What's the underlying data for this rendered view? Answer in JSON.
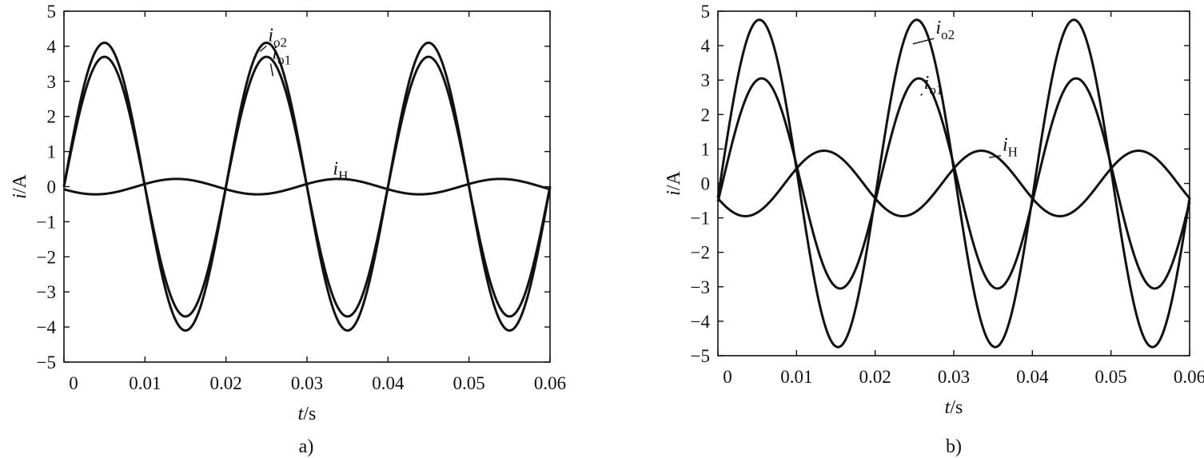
{
  "chart_data": [
    {
      "type": "line",
      "panel_label": "a)",
      "xlabel": {
        "var": "t",
        "unit": "/s"
      },
      "ylabel": {
        "var": "i",
        "unit": "/A"
      },
      "xlim": [
        0,
        0.06
      ],
      "ylim": [
        -5,
        5
      ],
      "xticks": [
        0,
        0.01,
        0.02,
        0.03,
        0.04,
        0.05,
        0.06
      ],
      "xtick_labels": [
        "0",
        "0.01",
        "0.02",
        "0.03",
        "0.04",
        "0.05",
        "0.06"
      ],
      "yticks": [
        5,
        4,
        3,
        2,
        1,
        0,
        -1,
        -2,
        -3,
        -4,
        -5
      ],
      "ytick_labels": [
        "5",
        "4",
        "3",
        "2",
        "1",
        "0",
        "−1",
        "−2",
        "−3",
        "−4",
        "−5"
      ],
      "series": [
        {
          "name": {
            "main": "i",
            "sub": "o2"
          },
          "amplitude": 4.1,
          "frequency_hz": 50,
          "phase_deg": 0,
          "label_at": [
            0.025,
            4.1
          ]
        },
        {
          "name": {
            "main": "i",
            "sub": "o1"
          },
          "amplitude": 3.7,
          "frequency_hz": 50,
          "phase_deg": 0,
          "label_at": [
            0.0255,
            3.6
          ]
        },
        {
          "name": {
            "main": "i",
            "sub": "H"
          },
          "amplitude": 0.22,
          "frequency_hz": 50,
          "phase_deg": 200,
          "label_at": [
            0.033,
            0.3
          ]
        }
      ]
    },
    {
      "type": "line",
      "panel_label": "b)",
      "xlabel": {
        "var": "t",
        "unit": "/s"
      },
      "ylabel": {
        "var": "i",
        "unit": "/A"
      },
      "xlim": [
        0,
        0.06
      ],
      "ylim": [
        -5,
        5
      ],
      "xticks": [
        0,
        0.01,
        0.02,
        0.03,
        0.04,
        0.05,
        0.06
      ],
      "xtick_labels": [
        "0",
        "0.01",
        "0.02",
        "0.03",
        "0.04",
        "0.05",
        "0.06"
      ],
      "yticks": [
        5,
        4,
        3,
        2,
        1,
        0,
        -1,
        -2,
        -3,
        -4,
        -5
      ],
      "ytick_labels": [
        "5",
        "4",
        "3",
        "2",
        "1",
        "0",
        "−1",
        "−2",
        "−3",
        "−4",
        "−5"
      ],
      "series": [
        {
          "name": {
            "main": "i",
            "sub": "o2"
          },
          "amplitude": 4.75,
          "frequency_hz": 50,
          "phase_deg": -5,
          "label_at": [
            0.0275,
            4.3
          ]
        },
        {
          "name": {
            "main": "i",
            "sub": "o1"
          },
          "amplitude": 3.05,
          "frequency_hz": 50,
          "phase_deg": -10,
          "label_at": [
            0.026,
            2.7
          ]
        },
        {
          "name": {
            "main": "i",
            "sub": "H"
          },
          "amplitude": 0.95,
          "frequency_hz": 50,
          "phase_deg": 207,
          "label_at": [
            0.036,
            0.9
          ]
        }
      ]
    }
  ]
}
